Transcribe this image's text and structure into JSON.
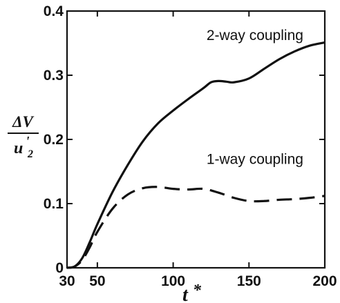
{
  "chart_data": {
    "type": "line",
    "xlabel_main": "t",
    "xlabel_sup": "*",
    "ylabel_num": "ΔV",
    "ylabel_den_base": "u",
    "ylabel_den_sup": "'",
    "ylabel_den_sub": "2",
    "xlim": [
      30,
      200
    ],
    "ylim": [
      0,
      0.4
    ],
    "xticks": [
      30,
      50,
      100,
      150,
      200
    ],
    "xtick_labels": [
      "30",
      "50",
      "100",
      "150",
      "200"
    ],
    "yticks": [
      0,
      0.1,
      0.2,
      0.3,
      0.4
    ],
    "ytick_labels": [
      "0",
      "0.1",
      "0.2",
      "0.3",
      "0.4"
    ],
    "grid": false,
    "series": [
      {
        "name": "2-way coupling",
        "style": "solid",
        "x": [
          30,
          35,
          40,
          45,
          50,
          60,
          70,
          80,
          90,
          100,
          110,
          120,
          125,
          130,
          135,
          140,
          150,
          160,
          170,
          180,
          190,
          200
        ],
        "y": [
          0.0,
          0.002,
          0.015,
          0.04,
          0.068,
          0.118,
          0.16,
          0.197,
          0.225,
          0.245,
          0.263,
          0.28,
          0.289,
          0.291,
          0.29,
          0.289,
          0.295,
          0.31,
          0.325,
          0.337,
          0.346,
          0.351
        ]
      },
      {
        "name": "1-way coupling",
        "style": "dashed",
        "x": [
          30,
          35,
          40,
          45,
          50,
          60,
          70,
          80,
          90,
          100,
          110,
          120,
          130,
          140,
          150,
          160,
          170,
          180,
          190,
          200
        ],
        "y": [
          0.0,
          0.002,
          0.012,
          0.032,
          0.056,
          0.092,
          0.114,
          0.124,
          0.126,
          0.123,
          0.122,
          0.123,
          0.117,
          0.109,
          0.104,
          0.104,
          0.106,
          0.107,
          0.109,
          0.112
        ]
      }
    ],
    "annotations": [
      {
        "text": "2-way coupling",
        "x": 122,
        "y": 0.355
      },
      {
        "text": "1-way coupling",
        "x": 122,
        "y": 0.162
      }
    ]
  }
}
